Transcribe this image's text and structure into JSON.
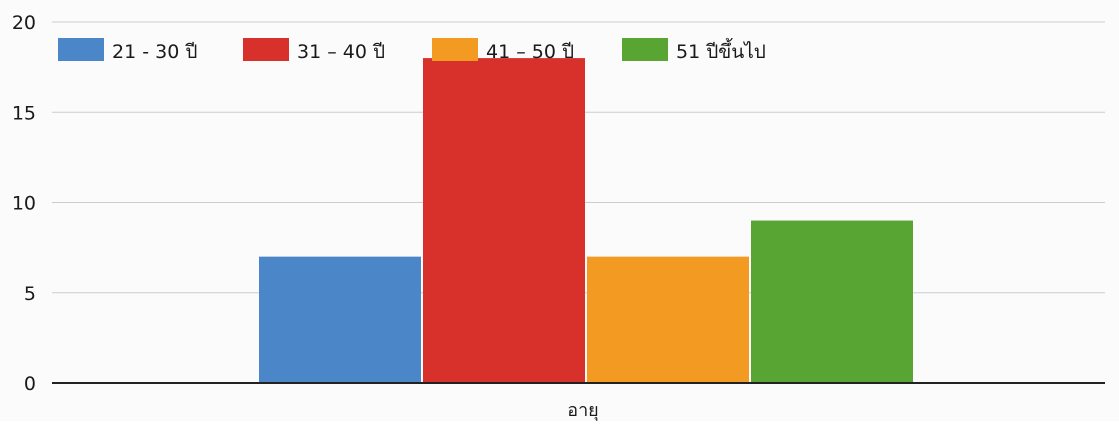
{
  "chart_data": {
    "type": "bar",
    "categories": [
      "อายุ"
    ],
    "xlabel": "อายุ",
    "ylabel": "",
    "title": "",
    "ylim": [
      0,
      20
    ],
    "yticks": [
      0,
      5,
      10,
      15,
      20
    ],
    "grid": true,
    "legend_position": "top-left",
    "series": [
      {
        "name": "21 - 30 ปี",
        "values": [
          7
        ],
        "color": "#4a86c8"
      },
      {
        "name": "31 – 40 ปี",
        "values": [
          18
        ],
        "color": "#d8302a"
      },
      {
        "name": "41 – 50 ปี",
        "values": [
          7
        ],
        "color": "#f39a22"
      },
      {
        "name": "51 ปีขึ้นไป",
        "values": [
          9
        ],
        "color": "#58a534"
      }
    ]
  }
}
